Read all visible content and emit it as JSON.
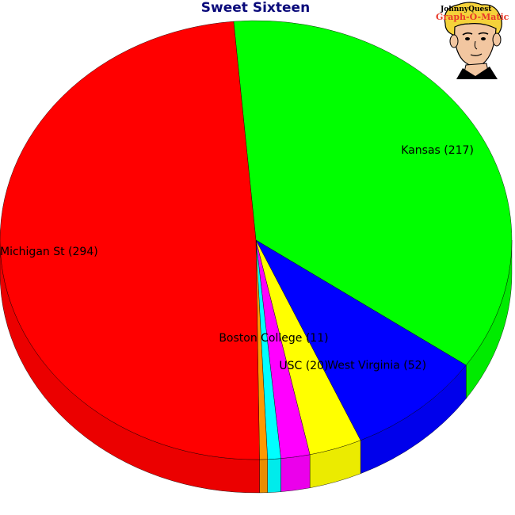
{
  "chart_data": {
    "type": "pie",
    "title": "Sweet Sixteen",
    "slices": [
      {
        "label": "Kansas",
        "value": 217,
        "color": "#00ff00"
      },
      {
        "label": "West Virginia",
        "value": 52,
        "color": "#0000ff"
      },
      {
        "label": "USC",
        "value": 20,
        "color": "#ffff00"
      },
      {
        "label": "Boston College",
        "value": 11,
        "color": "#ff00ff"
      },
      {
        "label": "",
        "value": 5,
        "color": "#00ffff"
      },
      {
        "label": "",
        "value": 3,
        "color": "#ff9900"
      },
      {
        "label": "Michigan St",
        "value": 294,
        "color": "#ff0000"
      }
    ],
    "style": "3d"
  },
  "logo": {
    "line1": "JohnnyQuest",
    "line2": "Graph-O-Matic"
  }
}
